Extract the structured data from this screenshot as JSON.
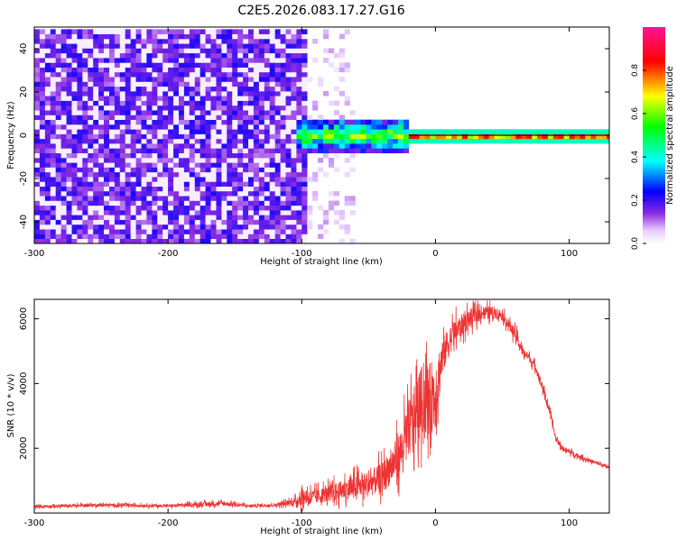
{
  "figure_title": "C2E5.2026.083.17.27.G16",
  "chart_data": [
    {
      "type": "heatmap",
      "xlabel": "Height of straight line (km)",
      "ylabel": "Frequency (Hz)",
      "xlim": [
        -300,
        130
      ],
      "ylim": [
        -50,
        50
      ],
      "x_ticks": [
        -300,
        -200,
        -100,
        0,
        100
      ],
      "y_ticks": [
        -40,
        -20,
        0,
        20,
        40
      ],
      "colorbar": {
        "label": "Normalized spectral amplitude",
        "range": [
          0,
          1
        ],
        "ticks": [
          0.0,
          0.2,
          0.4,
          0.6,
          0.8
        ],
        "tick_labels": [
          "0.0",
          "0.2",
          "0.4",
          "0.6",
          "0.8"
        ],
        "colormap": [
          "#ffffff",
          "#8a2be2",
          "#0000ff",
          "#00ffff",
          "#00ff00",
          "#ffff00",
          "#ff0000",
          "#ff1493"
        ]
      },
      "regions": [
        {
          "x": [
            -300,
            -97
          ],
          "freq_span": [
            -50,
            50
          ],
          "amplitude": 0.15,
          "texture": "dense noise"
        },
        {
          "x": [
            -97,
            -60
          ],
          "freq_span": [
            -50,
            50
          ],
          "amplitude": 0.05,
          "texture": "sparse noise"
        },
        {
          "x": [
            -105,
            -20
          ],
          "freq_span": [
            -8,
            8
          ],
          "amplitude": 0.45,
          "texture": "signal onset"
        },
        {
          "x": [
            -20,
            130
          ],
          "freq_span": [
            -3,
            3
          ],
          "amplitude": 0.6,
          "texture": "carrier line"
        }
      ],
      "carrier_frequency": 0
    },
    {
      "type": "line",
      "xlabel": "Height of straight line (km)",
      "ylabel": "SNR (10 * v/v)",
      "xlim": [
        -300,
        130
      ],
      "ylim": [
        0,
        6600
      ],
      "x_ticks": [
        -300,
        -200,
        -100,
        0,
        100
      ],
      "y_ticks": [
        2000,
        4000,
        6000
      ],
      "series": [
        {
          "color": "#ee3333",
          "x": [
            -300,
            -250,
            -200,
            -160,
            -140,
            -120,
            -105,
            -100,
            -90,
            -80,
            -70,
            -60,
            -50,
            -40,
            -30,
            -25,
            -20,
            -15,
            -10,
            -5,
            0,
            5,
            10,
            15,
            20,
            25,
            30,
            35,
            40,
            45,
            50,
            55,
            60,
            65,
            70,
            75,
            80,
            85,
            90,
            95,
            100,
            110,
            120,
            130
          ],
          "y": [
            200,
            250,
            220,
            300,
            220,
            250,
            350,
            500,
            500,
            600,
            700,
            800,
            900,
            1100,
            1600,
            2000,
            2600,
            3000,
            3500,
            3500,
            3700,
            4800,
            5300,
            5600,
            5800,
            6000,
            6100,
            6200,
            6200,
            6200,
            6100,
            5800,
            5500,
            5000,
            4800,
            4500,
            3900,
            3200,
            2300,
            2000,
            1900,
            1700,
            1550,
            1400
          ],
          "noise_amplitude": [
            80,
            90,
            80,
            150,
            80,
            90,
            250,
            500,
            450,
            500,
            600,
            700,
            800,
            900,
            1200,
            1400,
            1800,
            2000,
            2200,
            2200,
            2300,
            1200,
            900,
            800,
            700,
            600,
            500,
            400,
            400,
            350,
            300,
            350,
            400,
            300,
            250,
            250,
            250,
            250,
            200,
            150,
            150,
            120,
            110,
            100
          ]
        }
      ]
    }
  ]
}
